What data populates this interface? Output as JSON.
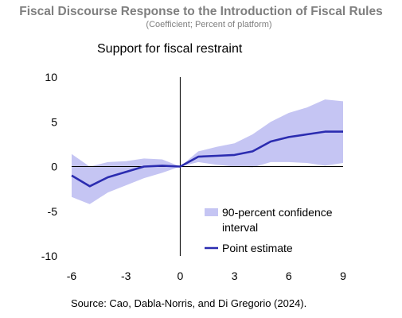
{
  "figure": {
    "title": "Fiscal Discourse Response to the Introduction of Fiscal Rules",
    "subtitle": "(Coefficient; Percent of platform)",
    "source": "Source: Cao, Dabla-Norris, and Di Gregorio (2024)."
  },
  "colors": {
    "band": "#c5c5f3",
    "line": "#2b2cb0",
    "axis": "#000000",
    "title": "#7f7f7f"
  },
  "chart_data": {
    "type": "line",
    "title": "Support for fiscal restraint",
    "xlabel": "",
    "ylabel": "",
    "xlim": [
      -6,
      9
    ],
    "ylim": [
      -10,
      10
    ],
    "x_ticks": [
      -6,
      -3,
      0,
      3,
      6,
      9
    ],
    "y_ticks": [
      10,
      5,
      0,
      -5,
      -10
    ],
    "grid": false,
    "legend_position": "bottom-right",
    "x": [
      -6,
      -5,
      -4,
      -3,
      -2,
      -1,
      0,
      1,
      2,
      3,
      4,
      5,
      6,
      7,
      8,
      9
    ],
    "series": [
      {
        "name": "Point estimate",
        "type": "line",
        "values": [
          -1.0,
          -2.2,
          -1.2,
          -0.6,
          0.0,
          0.1,
          0.0,
          1.1,
          1.2,
          1.3,
          1.7,
          2.8,
          3.3,
          3.6,
          3.9,
          3.9
        ]
      },
      {
        "name": "90-percent confidence interval",
        "type": "band",
        "lower": [
          -3.4,
          -4.2,
          -2.9,
          -2.1,
          -1.3,
          -0.7,
          0.0,
          0.5,
          0.2,
          0.0,
          -0.1,
          0.5,
          0.5,
          0.4,
          0.1,
          0.4
        ],
        "upper": [
          1.4,
          0.0,
          0.5,
          0.6,
          0.9,
          0.8,
          0.0,
          1.7,
          2.2,
          2.6,
          3.6,
          5.0,
          6.0,
          6.6,
          7.5,
          7.3
        ]
      }
    ],
    "legend": [
      {
        "label_lines": [
          "90-percent confidence",
          "interval"
        ],
        "kind": "band"
      },
      {
        "label_lines": [
          "Point estimate"
        ],
        "kind": "line"
      }
    ]
  }
}
